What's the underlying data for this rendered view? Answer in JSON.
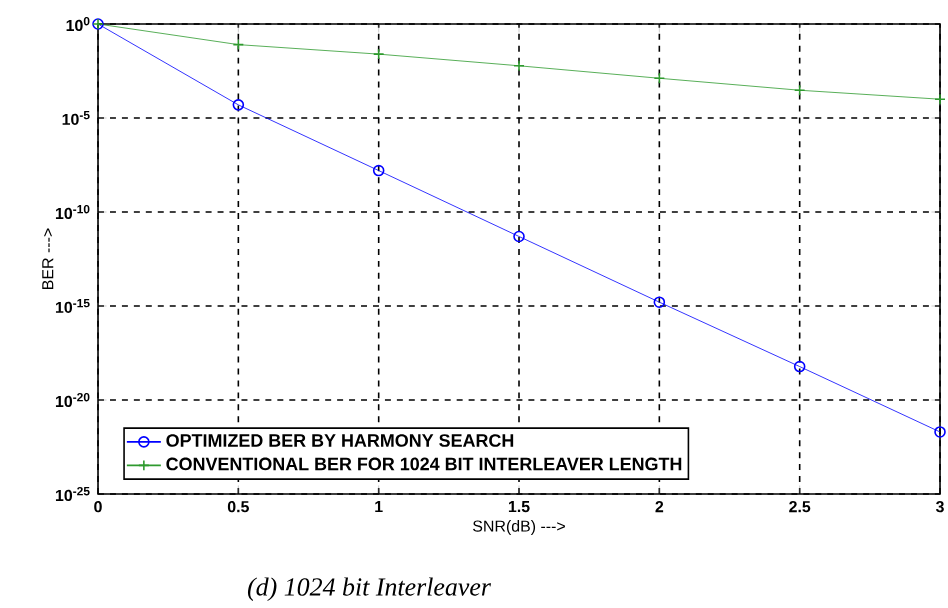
{
  "chart_data": {
    "type": "line",
    "xlabel": "SNR(dB) --->",
    "ylabel": "BER --->",
    "x": [
      0,
      0.5,
      1,
      1.5,
      2,
      2.5,
      3
    ],
    "series": [
      {
        "name": "OPTIMIZED BER BY HARMONY SEARCH",
        "color": "#0000ff",
        "marker": "circle",
        "values": [
          1,
          5e-05,
          1.6e-08,
          5e-12,
          1.6e-15,
          6e-19,
          2e-22
        ]
      },
      {
        "name": "CONVENTIONAL BER FOR 1024 BIT INTERLEAVER LENGTH",
        "color": "#2e9a2e",
        "marker": "cross",
        "values": [
          1,
          0.08,
          0.025,
          0.006,
          0.0013,
          0.0003,
          0.0001
        ]
      }
    ],
    "log": "y",
    "xlim": [
      0,
      3
    ],
    "ylim": [
      1e-25,
      1
    ],
    "xticks": [
      0,
      0.5,
      1,
      1.5,
      2,
      2.5,
      3
    ],
    "yticks": [
      {
        "value": 1e-25,
        "label": "10$^{-25}$"
      },
      {
        "value": 1e-20,
        "label": "10$^{-20}$"
      },
      {
        "value": 1e-15,
        "label": "10$^{-15}$"
      },
      {
        "value": 1e-10,
        "label": "10$^{-10}$"
      },
      {
        "value": 1e-05,
        "label": "10$^{-5}$"
      },
      {
        "value": 1,
        "label": "10$^{0}$"
      }
    ],
    "grid": true,
    "legend": "bottom left",
    "line_style": "solid",
    "annotations": [
      "*(d)   1024 bit Interleaver*"
    ]
  }
}
